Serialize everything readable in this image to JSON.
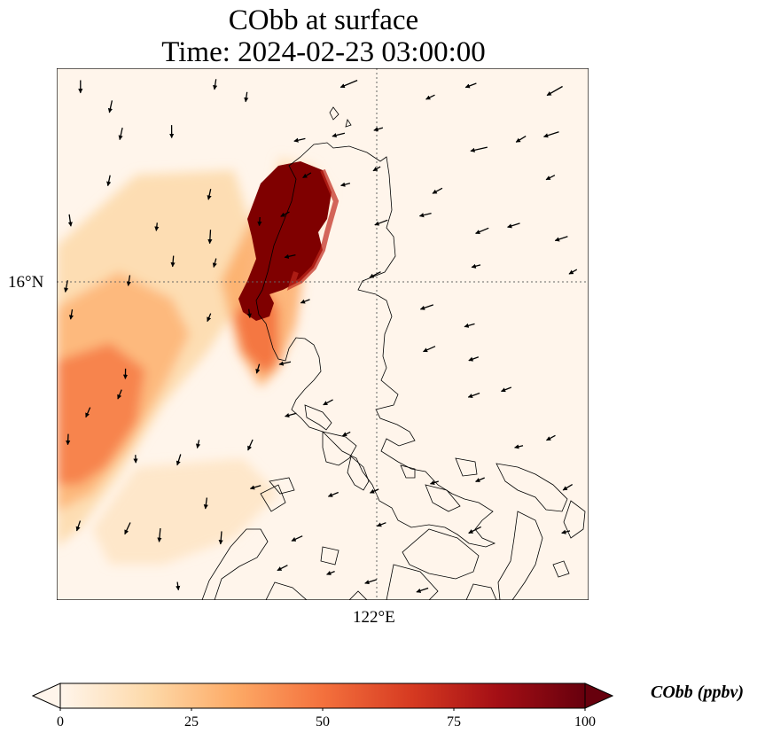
{
  "title_line1": "CObb at surface",
  "title_line2": "Time: 2024-02-23 03:00:00",
  "lat_label": "16°N",
  "lon_label": "122°E",
  "colorbar": {
    "label": "CObb (ppbv)",
    "ticks": [
      "0",
      "25",
      "50",
      "75",
      "100"
    ],
    "min": 0,
    "max": 100,
    "colors": [
      "#fff5eb",
      "#fdd9a9",
      "#fdab67",
      "#f4713d",
      "#d63a21",
      "#a50f15",
      "#67000d"
    ]
  }
}
